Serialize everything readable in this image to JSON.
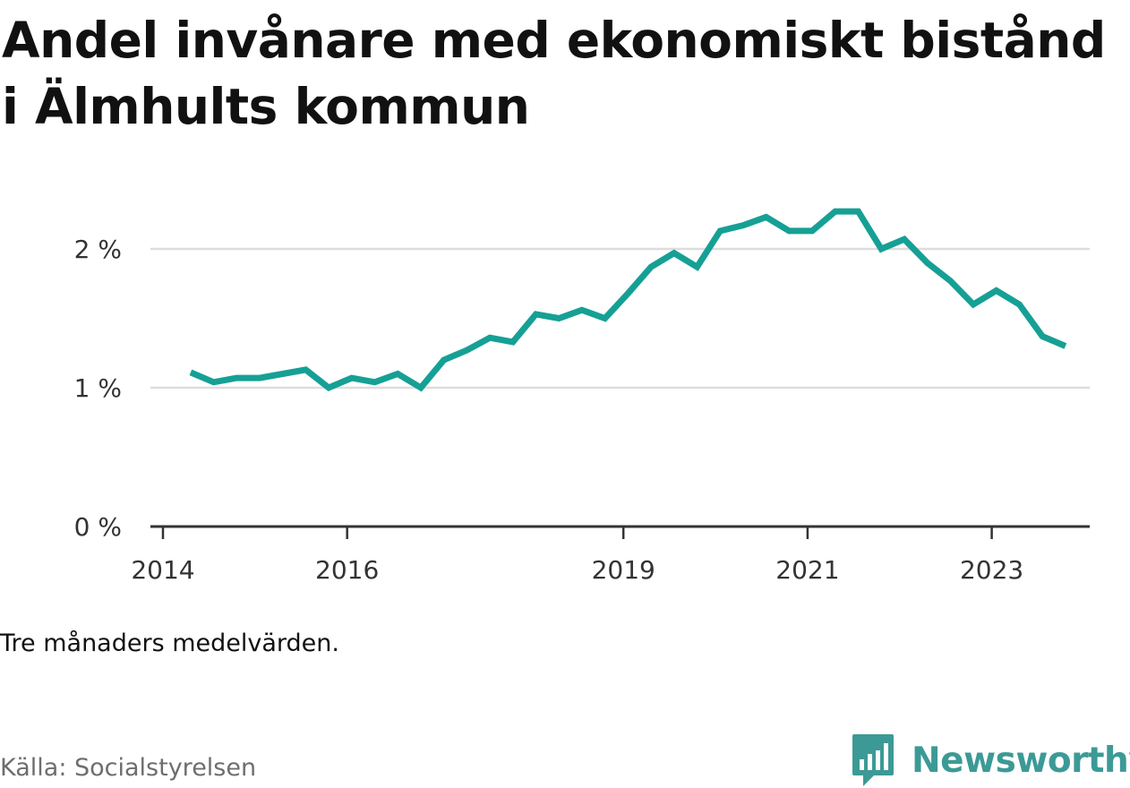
{
  "chart_data": {
    "type": "line",
    "title": "Andel invånare med ekonomiskt bistånd i Älmhults kommun",
    "ylim": [
      0,
      2.3
    ],
    "y_ticks": [
      0,
      1,
      2
    ],
    "y_tick_labels": [
      "0 %",
      "1 %",
      "2 %"
    ],
    "xlim": [
      2014.0,
      2024.2
    ],
    "x_ticks": [
      2014,
      2016,
      2019,
      2021,
      2023
    ],
    "x_tick_labels": [
      "2014",
      "2016",
      "2019",
      "2021",
      "2023"
    ],
    "grid": true,
    "colors": {
      "line": "#16a095",
      "grid": "#dddddd",
      "axis": "#333333"
    },
    "series": [
      {
        "x": [
          2014.3,
          2014.55,
          2014.8,
          2015.05,
          2015.3,
          2015.55,
          2015.8,
          2016.05,
          2016.3,
          2016.55,
          2016.8,
          2017.05,
          2017.3,
          2017.55,
          2017.8,
          2018.05,
          2018.3,
          2018.55,
          2018.8,
          2019.05,
          2019.3,
          2019.55,
          2019.8,
          2020.05,
          2020.3,
          2020.55,
          2020.8,
          2021.05,
          2021.3,
          2021.55,
          2021.8,
          2022.05,
          2022.3,
          2022.55,
          2022.8,
          2023.05,
          2023.3,
          2023.55,
          2023.8
        ],
        "y": [
          1.11,
          1.04,
          1.07,
          1.07,
          1.1,
          1.13,
          1.0,
          1.07,
          1.04,
          1.1,
          1.0,
          1.2,
          1.27,
          1.36,
          1.33,
          1.53,
          1.5,
          1.56,
          1.5,
          1.68,
          1.87,
          1.97,
          1.87,
          2.13,
          2.17,
          2.23,
          2.13,
          2.13,
          2.27,
          2.27,
          2.0,
          2.07,
          1.9,
          1.77,
          1.6,
          1.7,
          1.6,
          1.37,
          1.3
        ]
      }
    ]
  },
  "footer": {
    "note": "Tre månaders medelvärden.",
    "source": "Källa: Socialstyrelsen",
    "brand": "Newsworthy"
  }
}
